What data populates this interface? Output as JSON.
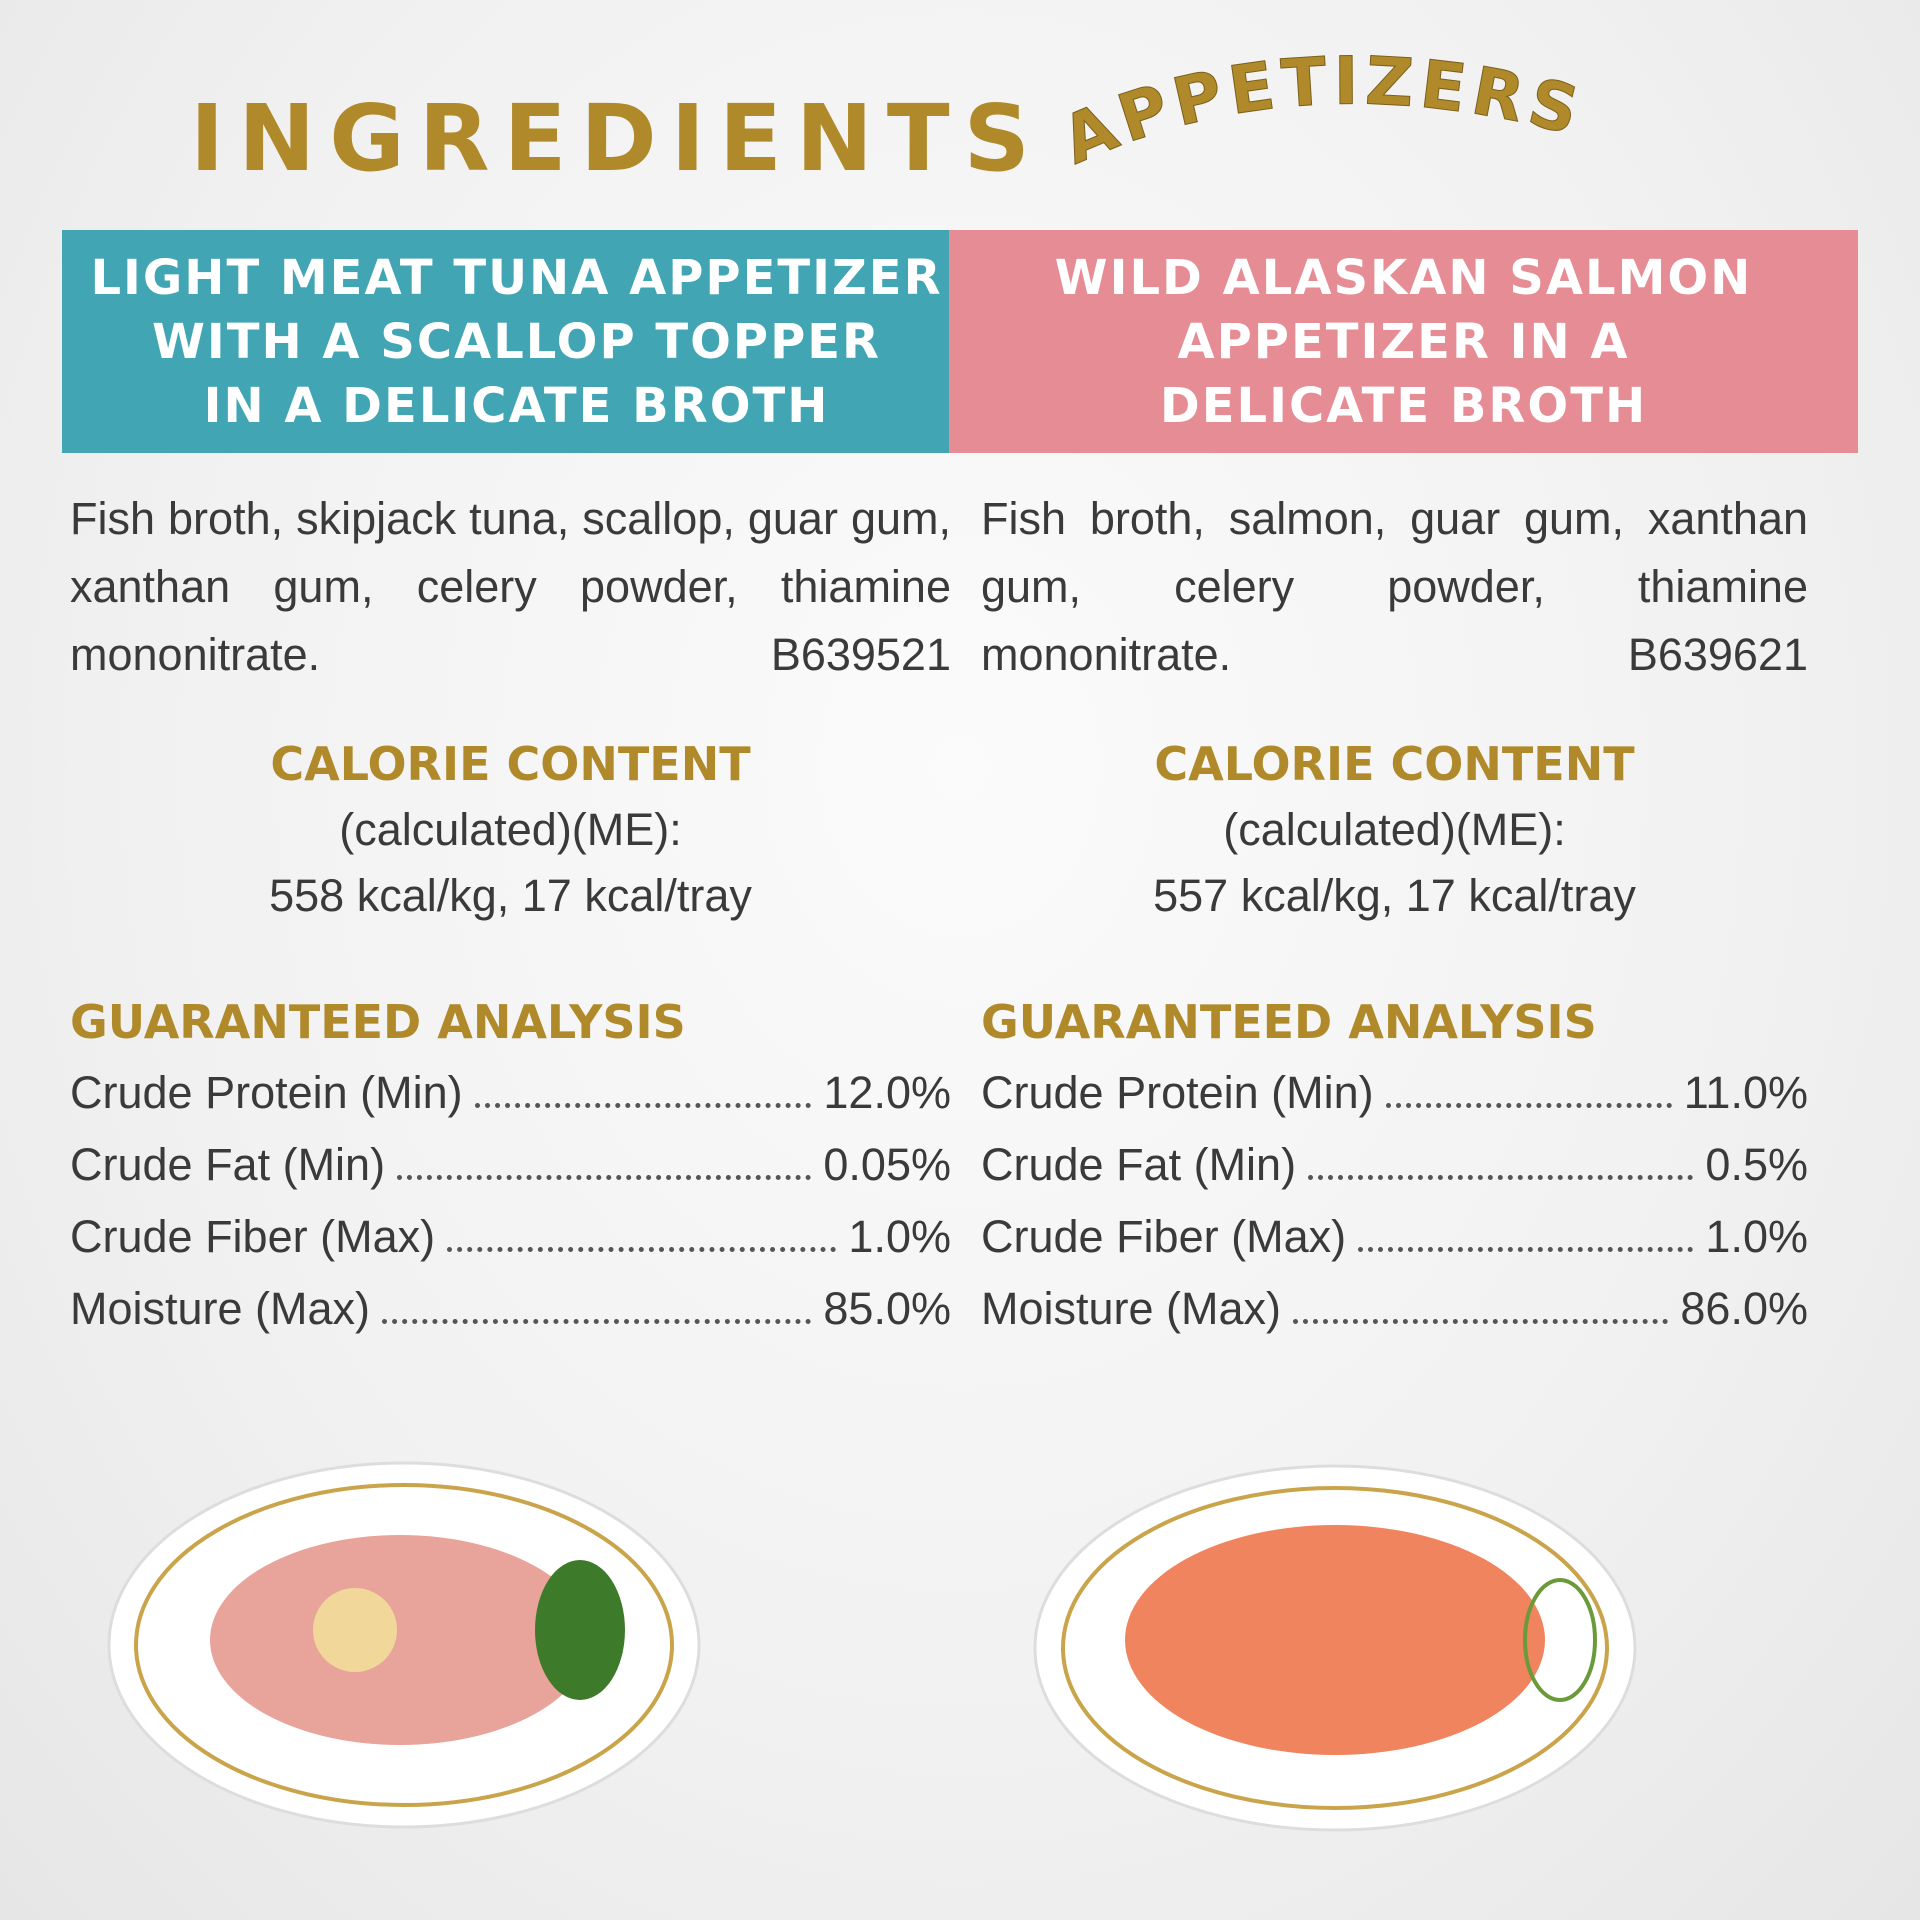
{
  "header": {
    "title": "INGREDIENTS",
    "subtitle": "APPETIZERS"
  },
  "products": [
    {
      "name_lines": [
        "LIGHT MEAT TUNA APPETIZER",
        "WITH A SCALLOP TOPPER",
        "IN A DELICATE BROTH"
      ],
      "ingredients": "Fish broth, skipjack tuna, scallop, guar gum, xanthan gum, celery powder, thiamine mononitrate.",
      "code": "B639521",
      "calorie_heading": "CALORIE CONTENT",
      "calorie_method": "(calculated)(ME):",
      "calorie_values": "558 kcal/kg, 17 kcal/tray",
      "analysis_heading": "GUARANTEED ANALYSIS",
      "analysis": [
        [
          "Crude Protein (Min)",
          "12.0%"
        ],
        [
          "Crude Fat (Min)",
          "0.05%"
        ],
        [
          "Crude Fiber (Max)",
          "1.0%"
        ],
        [
          "Moisture (Max)",
          "85.0%"
        ]
      ]
    },
    {
      "name_lines": [
        "WILD ALASKAN SALMON",
        "APPETIZER IN A",
        "DELICATE BROTH"
      ],
      "ingredients": "Fish broth, salmon, guar gum, xanthan gum, celery powder, thiamine mononitrate.",
      "code": "B639621",
      "calorie_heading": "CALORIE CONTENT",
      "calorie_method": "(calculated)(ME):",
      "calorie_values": "557 kcal/kg, 17 kcal/tray",
      "analysis_heading": "GUARANTEED ANALYSIS",
      "analysis": [
        [
          "Crude Protein (Min)",
          "11.0%"
        ],
        [
          "Crude Fat (Min)",
          "0.5%"
        ],
        [
          "Crude Fiber (Max)",
          "1.0%"
        ],
        [
          "Moisture (Max)",
          "86.0%"
        ]
      ]
    }
  ]
}
